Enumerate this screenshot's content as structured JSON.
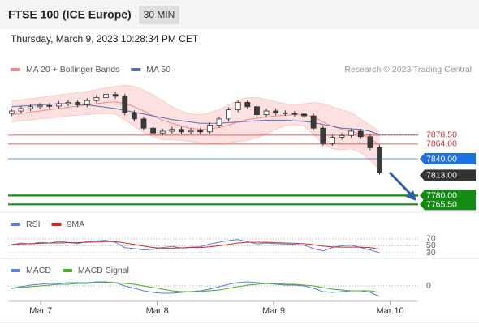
{
  "header": {
    "title": "FTSE 100 (ICE Europe)",
    "interval": "30 MIN",
    "datetime": "Thursday, March 9, 2023 10:28:34 PM CET"
  },
  "chart_data": {
    "type": "candlestick",
    "note": "Research © 2023 Trading Central",
    "xlim": [
      6.72,
      10.24
    ],
    "xticks": [
      {
        "value": 7,
        "label": "Mar 7"
      },
      {
        "value": 8,
        "label": "Mar 8"
      },
      {
        "value": 9,
        "label": "Mar 9"
      },
      {
        "value": 10,
        "label": "Mar 10"
      }
    ],
    "ylim": [
      7758,
      7967
    ],
    "up_color": "#ffffff",
    "down_color": "#3a3a3a",
    "x": [
      6.75,
      6.831,
      6.912,
      6.993,
      7.074,
      7.155,
      7.236,
      7.317,
      7.398,
      7.479,
      7.56,
      7.641,
      7.722,
      7.803,
      7.884,
      7.965,
      8.046,
      8.127,
      8.208,
      8.289,
      8.37,
      8.451,
      8.532,
      8.613,
      8.694,
      8.775,
      8.856,
      8.937,
      9.018,
      9.099,
      9.18,
      9.261,
      9.342,
      9.423,
      9.504,
      9.585,
      9.666,
      9.747,
      9.828,
      9.909
    ],
    "open": [
      7914,
      7918,
      7922,
      7925,
      7927,
      7926,
      7930,
      7932,
      7928,
      7935,
      7940,
      7945,
      7942,
      7915,
      7905,
      7890,
      7882,
      7885,
      7888,
      7884,
      7886,
      7884,
      7895,
      7905,
      7920,
      7932,
      7925,
      7912,
      7918,
      7915,
      7914,
      7913,
      7910,
      7890,
      7865,
      7875,
      7878,
      7885,
      7876,
      7858
    ],
    "high": [
      7922,
      7926,
      7929,
      7931,
      7931,
      7934,
      7936,
      7936,
      7939,
      7944,
      7949,
      7949,
      7946,
      7919,
      7909,
      7894,
      7889,
      7892,
      7892,
      7890,
      7890,
      7899,
      7909,
      7924,
      7936,
      7936,
      7929,
      7922,
      7922,
      7919,
      7918,
      7917,
      7914,
      7894,
      7879,
      7882,
      7889,
      7889,
      7880,
      7862
    ],
    "low": [
      7910,
      7914,
      7918,
      7921,
      7922,
      7922,
      7926,
      7924,
      7924,
      7931,
      7936,
      7938,
      7911,
      7901,
      7886,
      7878,
      7878,
      7881,
      7880,
      7880,
      7880,
      7880,
      7891,
      7901,
      7916,
      7921,
      7908,
      7908,
      7911,
      7910,
      7909,
      7906,
      7886,
      7861,
      7861,
      7871,
      7874,
      7872,
      7854,
      7814
    ],
    "close": [
      7918,
      7922,
      7925,
      7927,
      7926,
      7930,
      7932,
      7928,
      7935,
      7940,
      7945,
      7942,
      7915,
      7905,
      7890,
      7882,
      7885,
      7888,
      7884,
      7886,
      7884,
      7895,
      7905,
      7920,
      7932,
      7925,
      7912,
      7918,
      7915,
      7914,
      7913,
      7910,
      7890,
      7865,
      7875,
      7878,
      7885,
      7876,
      7858,
      7818
    ],
    "series": [
      {
        "name": "MA 20 + Bollinger Bands",
        "color": "#f08a8a",
        "band_color": "#fde0e0",
        "values": [
          7912,
          7914,
          7916,
          7918,
          7920,
          7922,
          7924,
          7926,
          7928,
          7930,
          7932,
          7933,
          7930,
          7925,
          7918,
          7910,
          7903,
          7898,
          7893,
          7890,
          7888,
          7889,
          7891,
          7895,
          7900,
          7904,
          7906,
          7908,
          7910,
          7911,
          7912,
          7912,
          7908,
          7900,
          7893,
          7888,
          7885,
          7880,
          7873,
          7862
        ],
        "band_upper": [
          7935,
          7936,
          7938,
          7940,
          7942,
          7944,
          7946,
          7948,
          7950,
          7953,
          7956,
          7958,
          7960,
          7958,
          7952,
          7944,
          7935,
          7925,
          7918,
          7913,
          7912,
          7915,
          7920,
          7928,
          7935,
          7940,
          7940,
          7937,
          7933,
          7930,
          7928,
          7930,
          7932,
          7930,
          7925,
          7920,
          7915,
          7905,
          7895,
          7885
        ],
        "band_lower": [
          7900,
          7902,
          7903,
          7905,
          7906,
          7908,
          7910,
          7911,
          7912,
          7913,
          7914,
          7913,
          7903,
          7893,
          7883,
          7876,
          7871,
          7871,
          7870,
          7868,
          7866,
          7865,
          7865,
          7866,
          7868,
          7870,
          7874,
          7880,
          7888,
          7894,
          7896,
          7893,
          7880,
          7864,
          7856,
          7855,
          7856,
          7850,
          7838,
          7822
        ]
      },
      {
        "name": "MA 50",
        "color": "#5a6fb0",
        "values": [
          7925,
          7926,
          7927,
          7928,
          7929,
          7930,
          7930,
          7929,
          7928,
          7926,
          7924,
          7922,
          7919,
          7916,
          7913,
          7910,
          7907,
          7904,
          7902,
          7900,
          7898,
          7898,
          7898,
          7899,
          7900,
          7901,
          7902,
          7903,
          7903,
          7903,
          7902,
          7901,
          7899,
          7896,
          7893,
          7890,
          7889,
          7888,
          7885,
          7879
        ]
      }
    ],
    "levels": [
      {
        "value": 7878.5,
        "label": "7878.50",
        "color": "#d03030",
        "style": "thin",
        "box": false
      },
      {
        "value": 7864,
        "label": "7864.00",
        "color": "#d03030",
        "style": "thin",
        "box": false
      },
      {
        "value": 7840,
        "label": "7840.00",
        "color": "#1f6fe0",
        "style": "thin",
        "box": true
      },
      {
        "value": 7813,
        "label": "7813.00",
        "color": "#333333",
        "style": "none",
        "box": true
      },
      {
        "value": 7780,
        "label": "7780.00",
        "color": "#138a13",
        "style": "thick",
        "box": true
      },
      {
        "value": 7765.5,
        "label": "7765.50",
        "color": "#138a13",
        "style": "thick",
        "box": true
      }
    ],
    "rsi": {
      "ylim": [
        16,
        86
      ],
      "yticks": [
        70,
        50,
        30
      ],
      "series": [
        {
          "name": "RSI",
          "color": "#5b7fd6",
          "values": [
            52,
            58,
            55,
            60,
            58,
            62,
            60,
            56,
            62,
            64,
            66,
            60,
            45,
            42,
            38,
            40,
            45,
            48,
            44,
            46,
            47,
            55,
            60,
            65,
            68,
            62,
            55,
            58,
            56,
            55,
            54,
            52,
            42,
            35,
            45,
            50,
            52,
            45,
            38,
            30
          ]
        },
        {
          "name": "9MA",
          "color": "#e02020",
          "values": [
            54,
            55,
            56,
            57,
            58,
            58,
            59,
            59,
            60,
            61,
            62,
            62,
            58,
            54,
            49,
            45,
            43,
            43,
            44,
            45,
            45,
            47,
            50,
            54,
            58,
            60,
            60,
            60,
            59,
            58,
            57,
            56,
            53,
            49,
            47,
            46,
            46,
            46,
            45,
            40
          ]
        }
      ]
    },
    "macd": {
      "ylim": [
        -17,
        13
      ],
      "yticks": [
        0
      ],
      "series": [
        {
          "name": "MACD",
          "color": "#5b7fd6",
          "values": [
            -3,
            -1,
            1,
            2,
            3,
            3,
            4,
            4,
            4,
            5,
            5,
            4,
            0,
            -3,
            -6,
            -8,
            -9,
            -9,
            -8,
            -7,
            -6,
            -4,
            -1,
            2,
            4,
            5,
            4,
            3,
            2,
            1,
            1,
            0,
            -3,
            -7,
            -8,
            -7,
            -6,
            -6,
            -8,
            -13
          ]
        },
        {
          "name": "MACD Signal",
          "color": "#4ca82b",
          "values": [
            -3,
            -2,
            -1,
            0,
            1,
            2,
            2,
            3,
            3,
            4,
            4,
            4,
            3,
            2,
            0,
            -2,
            -4,
            -6,
            -7,
            -7,
            -7,
            -6,
            -5,
            -3,
            -1,
            1,
            2,
            3,
            3,
            2,
            2,
            1,
            0,
            -2,
            -4,
            -5,
            -6,
            -6,
            -6,
            -8
          ]
        }
      ]
    }
  }
}
